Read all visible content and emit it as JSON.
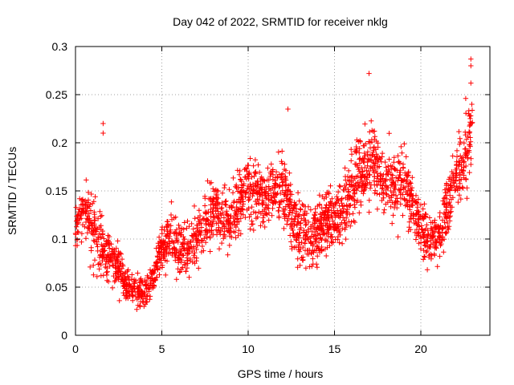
{
  "chart_data": {
    "type": "scatter",
    "title": "Day 042 of 2022, SRMTID for receiver nklg",
    "xlabel": "GPS time / hours",
    "ylabel": "SRMTID / TECUs",
    "xlim": [
      0,
      24
    ],
    "ylim": [
      0,
      0.3
    ],
    "xticks": [
      0,
      5,
      10,
      15,
      20
    ],
    "yticks": [
      0,
      0.05,
      0.1,
      0.15,
      0.2,
      0.25,
      0.3
    ],
    "xtick_labels": [
      "0",
      "5",
      "10",
      "15",
      "20"
    ],
    "ytick_labels": [
      "0",
      "0.05",
      "0.1",
      "0.15",
      "0.2",
      "0.25",
      "0.3"
    ],
    "grid": true,
    "marker": "+",
    "series_color": "#ff0000",
    "series": [
      {
        "name": "SRMTID",
        "profile_note": "approximate per-hour envelope of the dense scatter (x: hour, y: center, spread)",
        "profile": [
          [
            0.0,
            0.11,
            0.04
          ],
          [
            0.5,
            0.13,
            0.04
          ],
          [
            1.0,
            0.11,
            0.05
          ],
          [
            1.5,
            0.09,
            0.04
          ],
          [
            2.0,
            0.08,
            0.03
          ],
          [
            2.5,
            0.07,
            0.03
          ],
          [
            3.0,
            0.05,
            0.02
          ],
          [
            3.5,
            0.045,
            0.02
          ],
          [
            4.0,
            0.045,
            0.02
          ],
          [
            4.5,
            0.06,
            0.02
          ],
          [
            5.0,
            0.09,
            0.03
          ],
          [
            5.5,
            0.1,
            0.04
          ],
          [
            6.0,
            0.09,
            0.04
          ],
          [
            6.5,
            0.09,
            0.04
          ],
          [
            7.0,
            0.1,
            0.04
          ],
          [
            7.5,
            0.12,
            0.04
          ],
          [
            8.0,
            0.13,
            0.04
          ],
          [
            8.5,
            0.12,
            0.04
          ],
          [
            9.0,
            0.12,
            0.04
          ],
          [
            9.5,
            0.14,
            0.04
          ],
          [
            10.0,
            0.15,
            0.04
          ],
          [
            10.5,
            0.15,
            0.04
          ],
          [
            11.0,
            0.14,
            0.04
          ],
          [
            11.5,
            0.15,
            0.04
          ],
          [
            12.0,
            0.16,
            0.05
          ],
          [
            12.5,
            0.12,
            0.04
          ],
          [
            13.0,
            0.11,
            0.04
          ],
          [
            13.5,
            0.1,
            0.04
          ],
          [
            14.0,
            0.11,
            0.04
          ],
          [
            14.5,
            0.12,
            0.04
          ],
          [
            15.0,
            0.12,
            0.04
          ],
          [
            15.5,
            0.13,
            0.04
          ],
          [
            16.0,
            0.15,
            0.05
          ],
          [
            16.5,
            0.17,
            0.05
          ],
          [
            17.0,
            0.18,
            0.05
          ],
          [
            17.5,
            0.17,
            0.05
          ],
          [
            18.0,
            0.16,
            0.05
          ],
          [
            18.5,
            0.15,
            0.05
          ],
          [
            19.0,
            0.16,
            0.05
          ],
          [
            19.5,
            0.14,
            0.04
          ],
          [
            20.0,
            0.11,
            0.04
          ],
          [
            20.5,
            0.1,
            0.03
          ],
          [
            21.0,
            0.1,
            0.03
          ],
          [
            21.5,
            0.13,
            0.04
          ],
          [
            22.0,
            0.16,
            0.04
          ],
          [
            22.5,
            0.18,
            0.05
          ],
          [
            23.0,
            0.22,
            0.05
          ]
        ],
        "notable_points": [
          [
            1.6,
            0.22
          ],
          [
            1.6,
            0.21
          ],
          [
            12.3,
            0.235
          ],
          [
            17.0,
            0.272
          ],
          [
            22.9,
            0.287
          ],
          [
            22.9,
            0.28
          ],
          [
            22.6,
            0.246
          ],
          [
            22.9,
            0.262
          ]
        ],
        "point_count": 2400
      }
    ]
  }
}
